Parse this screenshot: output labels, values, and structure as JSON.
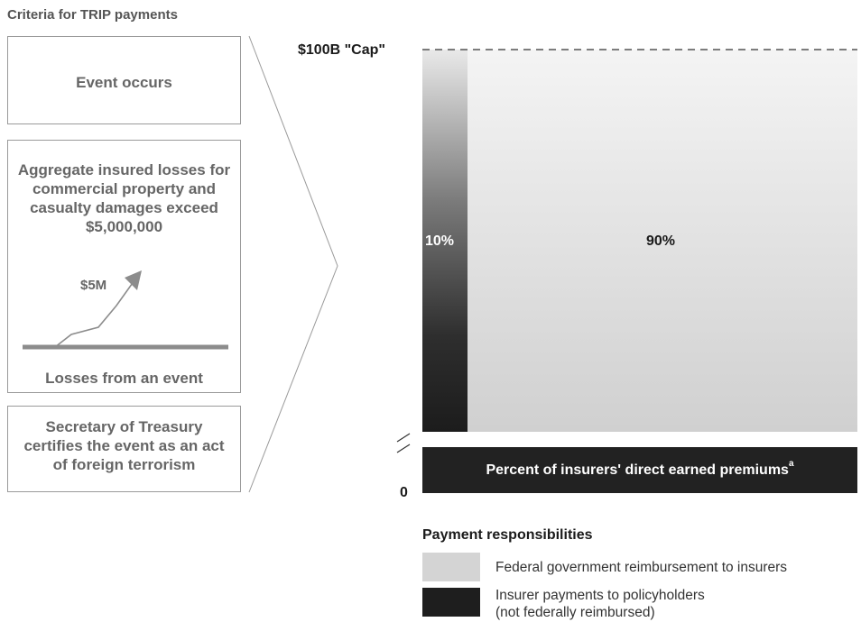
{
  "criteria": {
    "title": "Criteria for TRIP payments",
    "event": "Event occurs",
    "losses": "Aggregate insured losses for commercial property and casualty damages exceed $5,000,000",
    "threshold_label": "$5M",
    "losses_caption": "Losses from an event",
    "treasury": "Secretary of Treasury certifies the event as an act of foreign terrorism"
  },
  "chart_data": {
    "type": "stacked-bar",
    "y_top_label": "$100B \"Cap\"",
    "y_bottom_label": "0",
    "segments": [
      {
        "name": "Insurer payments to policyholders (not federally reimbursed)",
        "percent_label": "10%",
        "value": 10,
        "color": "#1e1e1e"
      },
      {
        "name": "Federal government reimbursement to insurers",
        "percent_label": "90%",
        "value": 90,
        "color": "#d4d4d4"
      }
    ],
    "base_label": "Percent of insurers' direct earned premiums",
    "base_footnote": "a"
  },
  "legend": {
    "title": "Payment responsibilities",
    "items": [
      {
        "label": "Federal government reimbursement to insurers",
        "color": "#d4d4d4"
      },
      {
        "label_line1": "Insurer payments to policyholders",
        "label_line2": "(not federally reimbursed)",
        "color": "#1e1e1e"
      }
    ]
  },
  "colors": {
    "box_border": "#9a9a9a",
    "box_text": "#666666",
    "dark": "#1e1e1e",
    "light": "#d4d4d4"
  }
}
